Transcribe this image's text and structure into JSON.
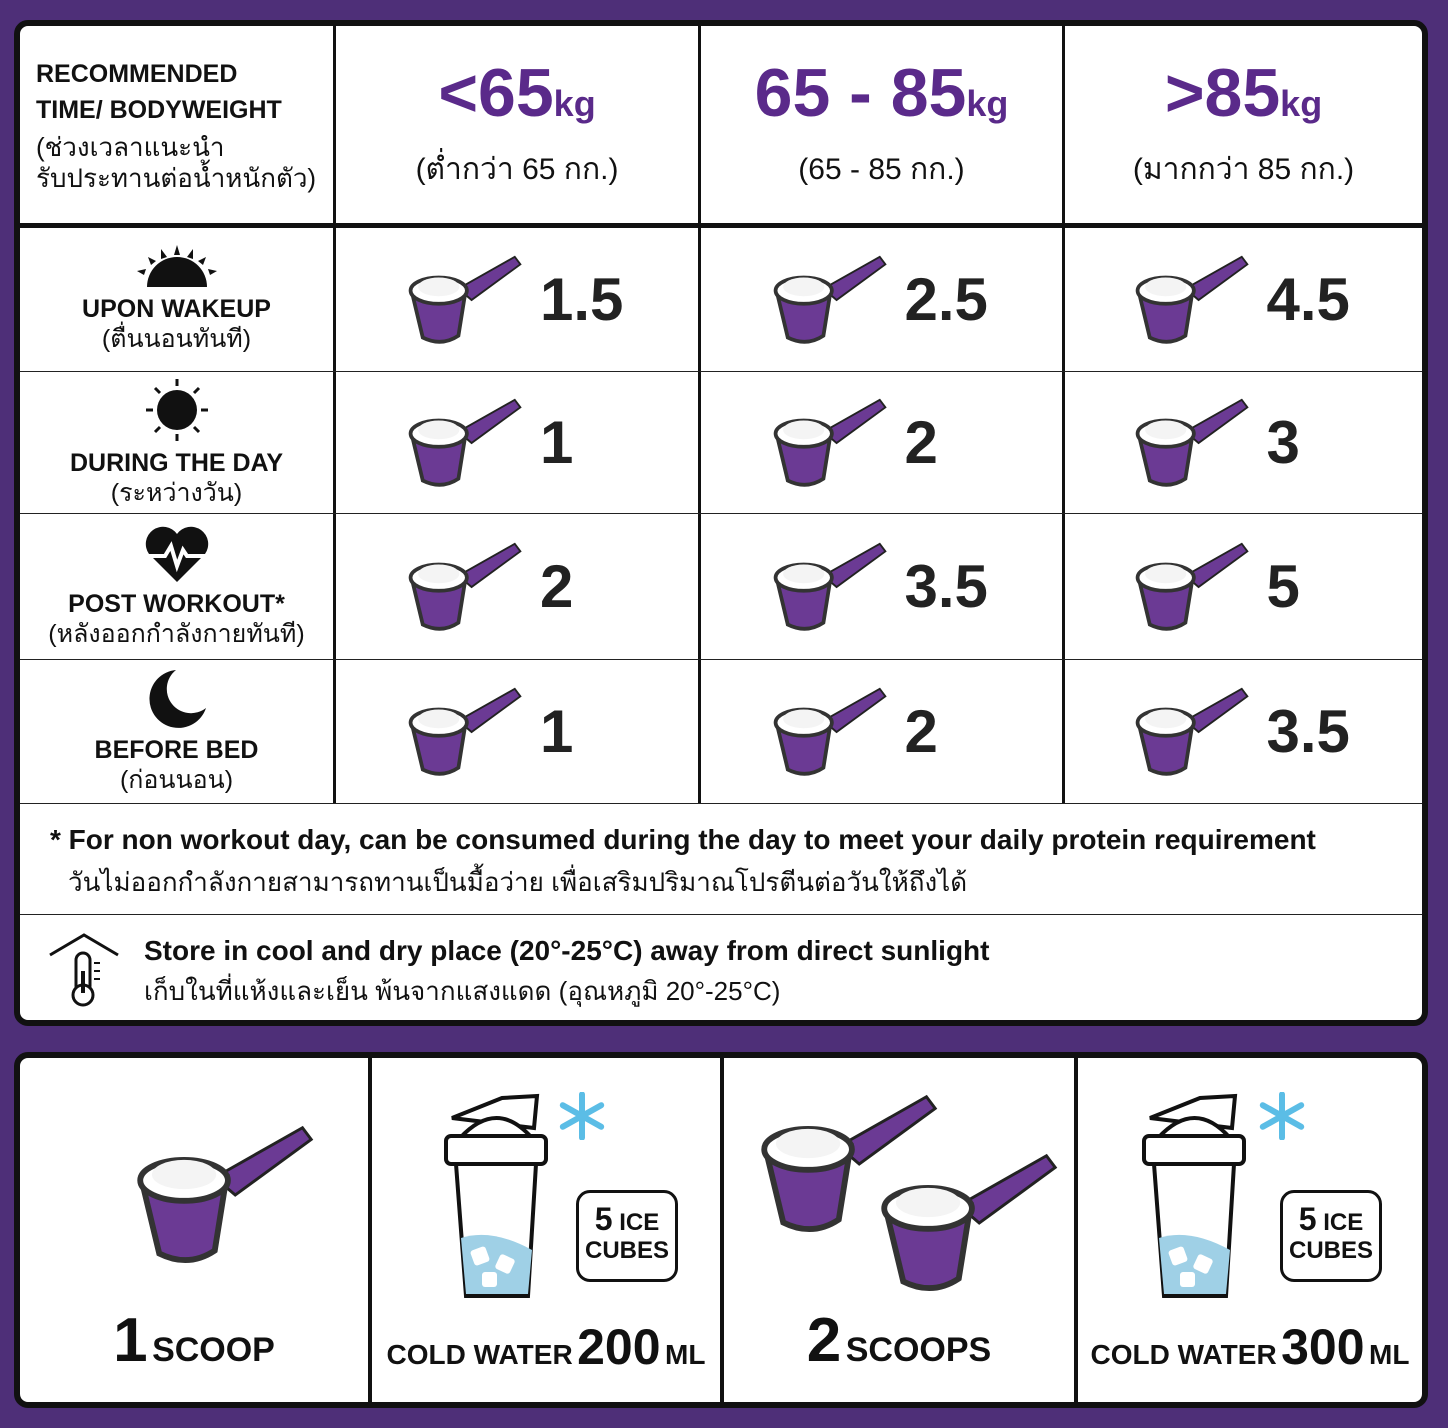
{
  "header": {
    "title_line1": "RECOMMENDED",
    "title_line2": "TIME/ BODYWEIGHT",
    "thai_line1": "(ช่วงเวลาแนะนำ",
    "thai_line2": "รับประทานต่อน้ำหนักตัว)",
    "columns": [
      {
        "value": "<65",
        "unit": "kg",
        "thai": "(ต่ำกว่า 65 กก.)"
      },
      {
        "value": "65 - 85",
        "unit": "kg",
        "thai": "(65 - 85 กก.)"
      },
      {
        "value": ">85",
        "unit": "kg",
        "thai": "(มากกว่า 85 กก.)"
      }
    ]
  },
  "rows": [
    {
      "icon": "sunrise-icon",
      "label": "UPON WAKEUP",
      "thai": "(ตื่นนอนทันที)",
      "values": [
        "1.5",
        "2.5",
        "4.5"
      ]
    },
    {
      "icon": "sun-icon",
      "label": "DURING THE DAY",
      "thai": "(ระหว่างวัน)",
      "values": [
        "1",
        "2",
        "3"
      ]
    },
    {
      "icon": "heartbeat-icon",
      "label": "POST WORKOUT*",
      "thai": "(หลังออกกำลังกายทันที)",
      "values": [
        "2",
        "3.5",
        "5"
      ]
    },
    {
      "icon": "moon-icon",
      "label": "BEFORE BED",
      "thai": "(ก่อนนอน)",
      "values": [
        "1",
        "2",
        "3.5"
      ]
    }
  ],
  "footnote": {
    "en": "* For non workout day, can be consumed during the day to meet your daily protein requirement",
    "th": "วันไม่ออกกำลังกายสามารถทานเป็นมื้อว่าย เพื่อเสริมปริมาณโปรตีนต่อวันให้ถึงได้"
  },
  "storage": {
    "icon": "thermometer-house-icon",
    "en": "Store in cool and dry place (20°-25°C) away from direct sunlight",
    "th": "เก็บในที่แห้งและเย็น พ้นจากแสงแดด (อุณหภูมิ 20°-25°C)"
  },
  "mixing": [
    {
      "num": "1",
      "label": "SCOOP"
    },
    {
      "prefix": "COLD WATER",
      "num": "200",
      "unit": "ML",
      "ice_num": "5",
      "ice_label1": "ICE",
      "ice_label2": "CUBES"
    },
    {
      "num": "2",
      "label": "SCOOPS"
    },
    {
      "prefix": "COLD WATER",
      "num": "300",
      "unit": "ML",
      "ice_num": "5",
      "ice_label1": "ICE",
      "ice_label2": "CUBES"
    }
  ],
  "colors": {
    "background": "#4e2f78",
    "accent": "#5a2a8a",
    "scoop": "#6b3a94",
    "water": "#9fd0e6",
    "snowflake": "#5bbde6"
  }
}
